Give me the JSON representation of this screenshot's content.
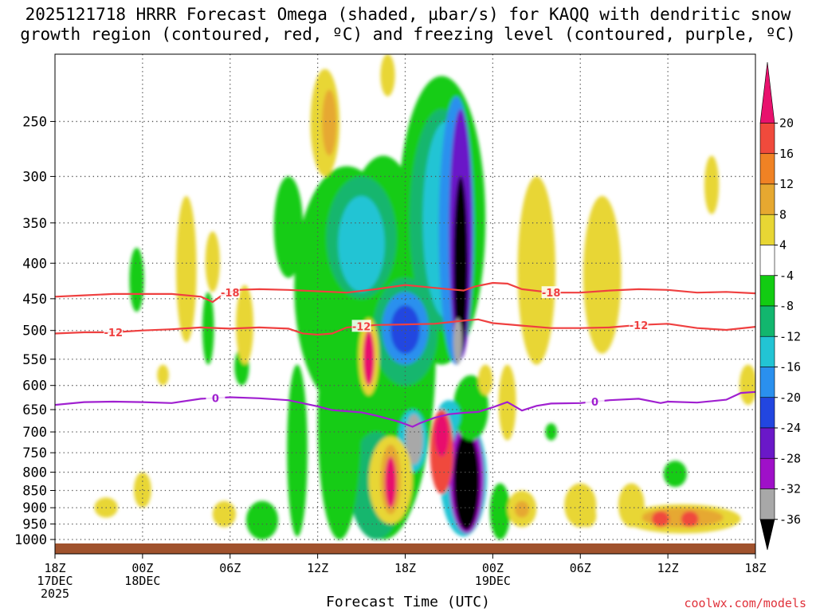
{
  "title": "2025121718 HRRR Forecast Omega (shaded, µbar/s) for KAQQ with dendritic snow\ngrowth region (contoured, red, ºC) and freezing level (contoured, purple, ºC)",
  "credit": "coolwx.com/models",
  "chart_data": {
    "type": "time-height cross section",
    "xlabel": "Forecast Time (UTC)",
    "ylabel": "",
    "x_ticks": [
      {
        "l1": "18Z",
        "l2": "17DEC",
        "l3": "2025"
      },
      {
        "l1": "00Z",
        "l2": "18DEC",
        "l3": ""
      },
      {
        "l1": "06Z",
        "l2": "",
        "l3": ""
      },
      {
        "l1": "12Z",
        "l2": "",
        "l3": ""
      },
      {
        "l1": "18Z",
        "l2": "",
        "l3": ""
      },
      {
        "l1": "00Z",
        "l2": "19DEC",
        "l3": ""
      },
      {
        "l1": "06Z",
        "l2": "",
        "l3": ""
      },
      {
        "l1": "12Z",
        "l2": "",
        "l3": ""
      },
      {
        "l1": "18Z",
        "l2": "",
        "l3": ""
      }
    ],
    "x_range_hours": [
      0,
      48
    ],
    "y_ticks": [
      250,
      300,
      350,
      400,
      450,
      500,
      550,
      600,
      650,
      700,
      750,
      800,
      850,
      900,
      950,
      1000
    ],
    "y_range_mb": [
      200,
      1000
    ],
    "y_scale": "log",
    "grid": true,
    "colorbar": {
      "labels": [
        "20",
        "16",
        "12",
        "8",
        "4",
        "-4",
        "-8",
        "-12",
        "-16",
        "-20",
        "-24",
        "-28",
        "-32",
        "-36"
      ],
      "colors": [
        "#e8116d",
        "#f04a3c",
        "#f08224",
        "#e6a830",
        "#e8d634",
        "#ffffff",
        "#12cc12",
        "#12b66e",
        "#22c4d4",
        "#2a90ee",
        "#2246e0",
        "#6a18c8",
        "#9f10c8",
        "#a8a8a8",
        "#000000"
      ]
    },
    "contours": [
      {
        "name": "-18",
        "color": "#ef4040",
        "label_at_hours": [
          12,
          34
        ],
        "pts": [
          [
            0,
            447
          ],
          [
            2,
            445
          ],
          [
            4,
            443
          ],
          [
            6,
            443
          ],
          [
            8,
            443
          ],
          [
            10,
            447
          ],
          [
            10.8,
            455
          ],
          [
            11.5,
            444
          ],
          [
            12.5,
            437
          ],
          [
            14,
            436
          ],
          [
            16,
            437
          ],
          [
            18,
            439
          ],
          [
            20,
            441
          ],
          [
            22,
            436
          ],
          [
            24,
            430
          ],
          [
            26,
            434
          ],
          [
            28,
            438
          ],
          [
            28.8,
            432
          ],
          [
            30,
            427
          ],
          [
            31,
            428
          ],
          [
            32,
            436
          ],
          [
            34,
            441
          ],
          [
            36,
            441
          ],
          [
            38,
            438
          ],
          [
            40,
            436
          ],
          [
            42,
            437
          ],
          [
            44,
            441
          ],
          [
            46,
            440
          ],
          [
            48,
            442
          ]
        ]
      },
      {
        "name": "-12",
        "color": "#ef4040",
        "label_at_hours": [
          4,
          21,
          40
        ],
        "pts": [
          [
            0,
            505
          ],
          [
            2,
            503
          ],
          [
            4,
            503
          ],
          [
            6,
            500
          ],
          [
            8,
            498
          ],
          [
            10,
            495
          ],
          [
            12,
            497
          ],
          [
            14,
            495
          ],
          [
            16,
            497
          ],
          [
            17,
            505
          ],
          [
            18,
            507
          ],
          [
            19,
            505
          ],
          [
            20,
            495
          ],
          [
            22,
            491
          ],
          [
            24,
            490
          ],
          [
            26,
            489
          ],
          [
            28,
            484
          ],
          [
            29,
            482
          ],
          [
            30,
            488
          ],
          [
            32,
            492
          ],
          [
            34,
            496
          ],
          [
            36,
            496
          ],
          [
            38,
            495
          ],
          [
            40,
            491
          ],
          [
            42,
            489
          ],
          [
            44,
            496
          ],
          [
            46,
            499
          ],
          [
            48,
            494
          ]
        ]
      },
      {
        "name": "0",
        "color": "#a020d0",
        "label_at_hours": [
          11,
          37
        ],
        "pts": [
          [
            0,
            640
          ],
          [
            2,
            634
          ],
          [
            4,
            633
          ],
          [
            6,
            634
          ],
          [
            8,
            636
          ],
          [
            10,
            627
          ],
          [
            12,
            624
          ],
          [
            14,
            626
          ],
          [
            16,
            630
          ],
          [
            18,
            643
          ],
          [
            19,
            651
          ],
          [
            21,
            656
          ],
          [
            22,
            663
          ],
          [
            23.5,
            676
          ],
          [
            24.5,
            688
          ],
          [
            25,
            680
          ],
          [
            26,
            668
          ],
          [
            27,
            660
          ],
          [
            28,
            657
          ],
          [
            29,
            655
          ],
          [
            30,
            645
          ],
          [
            31,
            634
          ],
          [
            32,
            652
          ],
          [
            33,
            642
          ],
          [
            34,
            637
          ],
          [
            36,
            636
          ],
          [
            38,
            630
          ],
          [
            40,
            627
          ],
          [
            41.5,
            636
          ],
          [
            42,
            633
          ],
          [
            44,
            635
          ],
          [
            46,
            629
          ],
          [
            47,
            615
          ],
          [
            48,
            613
          ]
        ]
      }
    ]
  }
}
